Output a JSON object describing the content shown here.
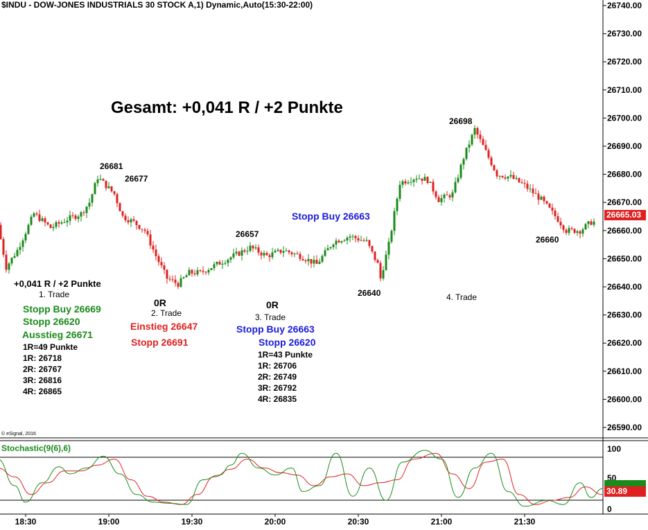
{
  "header": {
    "title": "$INDU - DOW-JONES INDUSTRIALS 30 STOCK A,1) Dynamic,Auto(15:30-22:00)"
  },
  "headline": "Gesamt: +0,041 R / +2 Punkte",
  "copyright": "© eSignal, 2016",
  "price_axis": {
    "labels": [
      "26740.00",
      "26730.00",
      "26720.00",
      "26710.00",
      "26700.00",
      "26690.00",
      "26680.00",
      "26670.00",
      "26660.00",
      "26650.00",
      "26640.00",
      "26630.00",
      "26620.00",
      "26610.00",
      "26600.00",
      "26590.00"
    ],
    "last_price": "26665.03"
  },
  "time_axis": {
    "labels": [
      "18:30",
      "19:00",
      "19:30",
      "20:00",
      "20:30",
      "21:00",
      "21:30"
    ]
  },
  "stochastic": {
    "label": "Stochastic(9(6),6)",
    "axis_labels": [
      "100",
      "50",
      "0"
    ],
    "last_value": "30.89",
    "k_color": "#1a8a1a",
    "d_color": "#e02020"
  },
  "annotations": {
    "p26681": "26681",
    "p26677": "26677",
    "p26657": "26657",
    "p26640": "26640",
    "p26698": "26698",
    "p26660": "26660",
    "stopp_buy_top": "Stopp Buy 26663",
    "trade1": {
      "result": "+0,041 R / +2 Punkte",
      "name": "1. Trade",
      "stopp_buy": "Stopp Buy 26669",
      "stopp": "Stopp 26620",
      "ausstieg": "Ausstieg 26671",
      "r_def": "1R=49 Punkte",
      "r1": "1R: 26718",
      "r2": "2R: 26767",
      "r3": "3R: 26816",
      "r4": "4R: 26865"
    },
    "trade2": {
      "result": "0R",
      "name": "2. Trade",
      "einstieg": "Einstieg 26647",
      "stopp": "Stopp 26691"
    },
    "trade3": {
      "result": "0R",
      "name": "3. Trade",
      "stopp_buy": "Stopp Buy 26663",
      "stopp": "Stopp 26620",
      "r_def": "1R=43 Punkte",
      "r1": "1R: 26706",
      "r2": "2R: 26749",
      "r3": "3R: 26792",
      "r4": "4R: 26835"
    },
    "trade4": {
      "name": "4. Trade"
    }
  },
  "chart_data": {
    "type": "candlestick",
    "title": "$INDU - DOW-JONES INDUSTRIALS 30 STOCK A,1) Dynamic,Auto(15:30-22:00)",
    "ylim": [
      26583,
      26745
    ],
    "x_range": [
      "18:20",
      "22:00"
    ],
    "up_color": "#1a8a1a",
    "down_color": "#e02020",
    "waypoints": [
      [
        "18:21",
        26662
      ],
      [
        "18:24",
        26647
      ],
      [
        "18:28",
        26653
      ],
      [
        "18:34",
        26666
      ],
      [
        "18:40",
        26661
      ],
      [
        "18:46",
        26664
      ],
      [
        "18:51",
        26666
      ],
      [
        "18:54",
        26670
      ],
      [
        "18:57",
        26679
      ],
      [
        "19:00",
        26676
      ],
      [
        "19:03",
        26673
      ],
      [
        "19:06",
        26665
      ],
      [
        "19:10",
        26663
      ],
      [
        "19:14",
        26660
      ],
      [
        "19:18",
        26651
      ],
      [
        "19:22",
        26643
      ],
      [
        "19:26",
        26641
      ],
      [
        "19:30",
        26645
      ],
      [
        "19:34",
        26645
      ],
      [
        "19:40",
        26648
      ],
      [
        "19:46",
        26651
      ],
      [
        "19:52",
        26654
      ],
      [
        "19:58",
        26651
      ],
      [
        "20:04",
        26653
      ],
      [
        "20:10",
        26651
      ],
      [
        "20:16",
        26648
      ],
      [
        "20:22",
        26656
      ],
      [
        "20:28",
        26658
      ],
      [
        "20:34",
        26656
      ],
      [
        "20:38",
        26648
      ],
      [
        "20:39",
        26643
      ],
      [
        "20:42",
        26655
      ],
      [
        "20:46",
        26677
      ],
      [
        "20:52",
        26679
      ],
      [
        "20:56",
        26678
      ],
      [
        "21:00",
        26671
      ],
      [
        "21:05",
        26673
      ],
      [
        "21:09",
        26686
      ],
      [
        "21:13",
        26696
      ],
      [
        "21:17",
        26688
      ],
      [
        "21:21",
        26680
      ],
      [
        "21:26",
        26679
      ],
      [
        "21:31",
        26676
      ],
      [
        "21:37",
        26671
      ],
      [
        "21:43",
        26664
      ],
      [
        "21:46",
        26660
      ],
      [
        "21:51",
        26660
      ],
      [
        "21:55",
        26663
      ]
    ],
    "stochastic_k": [
      [
        "18:20",
        85
      ],
      [
        "18:26",
        40
      ],
      [
        "18:30",
        12
      ],
      [
        "18:36",
        45
      ],
      [
        "18:42",
        72
      ],
      [
        "18:46",
        60
      ],
      [
        "18:52",
        70
      ],
      [
        "18:58",
        90
      ],
      [
        "19:04",
        60
      ],
      [
        "19:10",
        25
      ],
      [
        "19:16",
        12
      ],
      [
        "19:22",
        10
      ],
      [
        "19:28",
        8
      ],
      [
        "19:34",
        50
      ],
      [
        "19:40",
        58
      ],
      [
        "19:44",
        75
      ],
      [
        "19:48",
        95
      ],
      [
        "19:54",
        70
      ],
      [
        "20:00",
        58
      ],
      [
        "20:06",
        70
      ],
      [
        "20:10",
        30
      ],
      [
        "20:16",
        40
      ],
      [
        "20:22",
        95
      ],
      [
        "20:28",
        22
      ],
      [
        "20:34",
        70
      ],
      [
        "20:40",
        15
      ],
      [
        "20:46",
        80
      ],
      [
        "20:54",
        100
      ],
      [
        "21:00",
        85
      ],
      [
        "21:06",
        20
      ],
      [
        "21:12",
        70
      ],
      [
        "21:18",
        95
      ],
      [
        "21:24",
        30
      ],
      [
        "21:30",
        5
      ],
      [
        "21:38",
        15
      ],
      [
        "21:44",
        8
      ],
      [
        "21:50",
        45
      ],
      [
        "21:54",
        20
      ],
      [
        "21:58",
        35
      ]
    ],
    "stochastic_d": [
      [
        "18:20",
        70
      ],
      [
        "18:26",
        55
      ],
      [
        "18:32",
        25
      ],
      [
        "18:38",
        45
      ],
      [
        "18:44",
        65
      ],
      [
        "18:50",
        65
      ],
      [
        "18:56",
        75
      ],
      [
        "19:02",
        85
      ],
      [
        "19:08",
        50
      ],
      [
        "19:14",
        22
      ],
      [
        "19:20",
        12
      ],
      [
        "19:26",
        8
      ],
      [
        "19:32",
        25
      ],
      [
        "19:38",
        55
      ],
      [
        "19:44",
        68
      ],
      [
        "19:50",
        85
      ],
      [
        "19:56",
        70
      ],
      [
        "20:02",
        62
      ],
      [
        "20:08",
        58
      ],
      [
        "20:14",
        40
      ],
      [
        "20:20",
        55
      ],
      [
        "20:26",
        60
      ],
      [
        "20:32",
        40
      ],
      [
        "20:38",
        45
      ],
      [
        "20:44",
        50
      ],
      [
        "20:50",
        85
      ],
      [
        "20:58",
        95
      ],
      [
        "21:04",
        60
      ],
      [
        "21:10",
        35
      ],
      [
        "21:16",
        80
      ],
      [
        "21:22",
        85
      ],
      [
        "21:28",
        25
      ],
      [
        "21:34",
        8
      ],
      [
        "21:40",
        15
      ],
      [
        "21:46",
        20
      ],
      [
        "21:52",
        38
      ],
      [
        "21:58",
        25
      ]
    ]
  }
}
